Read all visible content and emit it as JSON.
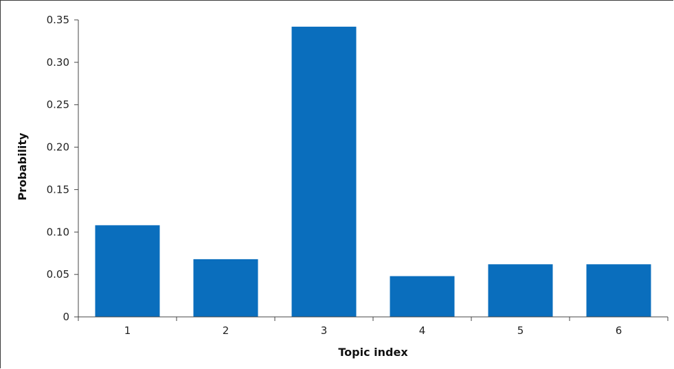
{
  "chart_data": {
    "type": "bar",
    "categories": [
      "1",
      "2",
      "3",
      "4",
      "5",
      "6"
    ],
    "values": [
      0.108,
      0.068,
      0.342,
      0.048,
      0.062,
      0.062
    ],
    "ylim": [
      0,
      0.35
    ],
    "yticks": [
      "0",
      "0.05",
      "0.10",
      "0.15",
      "0.20",
      "0.25",
      "0.30",
      "0.35"
    ],
    "ytick_values": [
      0,
      0.05,
      0.1,
      0.15,
      0.2,
      0.25,
      0.3,
      0.35
    ],
    "xlabel": "Topic index",
    "ylabel": "Probability",
    "bar_color": "#0a6ebd",
    "grid": false,
    "legend": "none"
  }
}
